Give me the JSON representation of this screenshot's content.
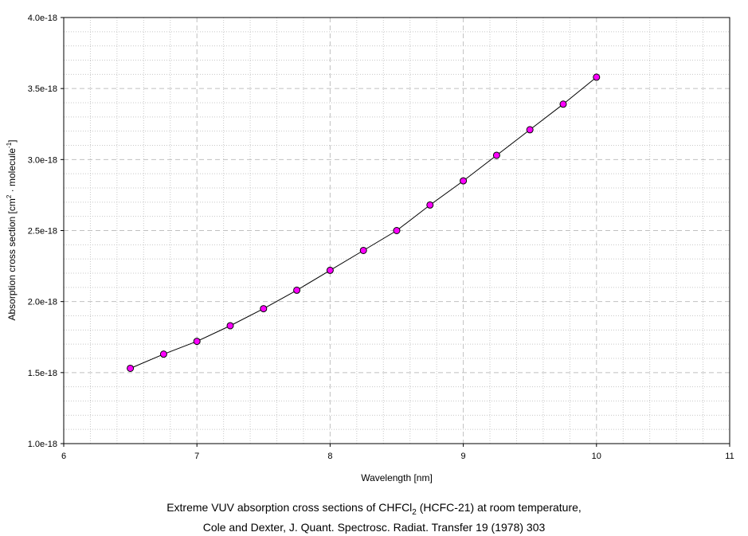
{
  "chart_data": {
    "type": "line",
    "xlabel": "Wavelength [nm]",
    "ylabel": {
      "prefix": "Absorption cross section [cm",
      "sup1": "2",
      "mid": " · molecule",
      "sup2": "-1",
      "suffix": "]"
    },
    "xlim": [
      6,
      11
    ],
    "ylim": [
      1e-18,
      4e-18
    ],
    "x_ticks": [
      "6",
      "7",
      "8",
      "9",
      "10",
      "11"
    ],
    "y_ticks": [
      "1.0e-18",
      "1.5e-18",
      "2.0e-18",
      "2.5e-18",
      "3.0e-18",
      "3.5e-18",
      "4.0e-18"
    ],
    "grid": true,
    "series": [
      {
        "x": [
          6.5,
          6.75,
          7.0,
          7.25,
          7.5,
          7.75,
          8.0,
          8.25,
          8.5,
          8.75,
          9.0,
          9.25,
          9.5,
          9.75,
          10.0
        ],
        "y": [
          1.53e-18,
          1.63e-18,
          1.72e-18,
          1.83e-18,
          1.95e-18,
          2.08e-18,
          2.22e-18,
          2.36e-18,
          2.5e-18,
          2.68e-18,
          2.85e-18,
          3.03e-18,
          3.21e-18,
          3.39e-18,
          3.58e-18
        ],
        "marker_color": "#ff00ff",
        "line_color": "#000000"
      }
    ]
  },
  "caption": {
    "line1_prefix": "Extreme VUV absorption cross sections of CHFCl",
    "line1_sub": "2",
    "line1_suffix": " (HCFC-21) at room temperature,",
    "line2": "Cole and Dexter, J. Quant. Spectrosc. Radiat. Transfer 19 (1978) 303"
  }
}
